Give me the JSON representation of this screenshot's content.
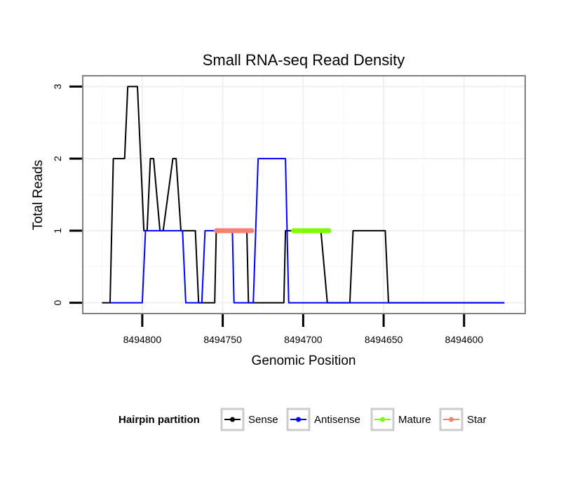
{
  "chart_data": {
    "type": "line",
    "title": "Small RNA-seq Read Density",
    "xlabel": "Genomic Position",
    "ylabel": "Total Reads",
    "x_reversed": true,
    "xlim": [
      8494837,
      8494562
    ],
    "ylim": [
      -0.15,
      3.15
    ],
    "x_ticks": [
      8494800,
      8494750,
      8494700,
      8494650,
      8494600
    ],
    "x_tick_labels": [
      "8494800",
      "8494750",
      "8494700",
      "8494650",
      "8494600"
    ],
    "y_ticks": [
      0,
      1,
      2,
      3
    ],
    "y_tick_labels": [
      "0",
      "1",
      "2",
      "3"
    ],
    "grid": true,
    "legend": {
      "title": "Hairpin partition",
      "position": "bottom",
      "items": [
        "Sense",
        "Antisense",
        "Mature",
        "Star"
      ]
    },
    "series": [
      {
        "name": "Sense",
        "color": "#000000",
        "x": [
          8494825,
          8494820,
          8494818,
          8494811,
          8494809,
          8494803,
          8494801,
          8494799,
          8494797,
          8494795,
          8494793,
          8494789,
          8494787,
          8494781,
          8494779,
          8494776,
          8494774,
          8494769,
          8494767,
          8494765,
          8494757,
          8494755,
          8494754,
          8494735,
          8494734,
          8494712,
          8494711,
          8494706,
          8494701,
          8494690,
          8494689,
          8494685,
          8494684,
          8494671,
          8494669,
          8494649,
          8494647,
          8494626,
          8494625,
          8494600,
          8494575
        ],
        "y": [
          0,
          0,
          2,
          2,
          3,
          3,
          2,
          1,
          1,
          2,
          2,
          1,
          1,
          2,
          2,
          1,
          1,
          1,
          1,
          0,
          0,
          0,
          1,
          1,
          0,
          0,
          1,
          1,
          1,
          1,
          1,
          0,
          0,
          0,
          1,
          1,
          0,
          0,
          0,
          0,
          0
        ]
      },
      {
        "name": "Antisense",
        "color": "#0000ff",
        "x": [
          8494820,
          8494800,
          8494798,
          8494775,
          8494773,
          8494763,
          8494761,
          8494744,
          8494743,
          8494731,
          8494728,
          8494711,
          8494709,
          8494690,
          8494689,
          8494684,
          8494682,
          8494648,
          8494575
        ],
        "y": [
          0,
          0,
          1,
          1,
          0,
          0,
          1,
          1,
          0,
          0,
          2,
          2,
          0,
          0,
          0,
          0,
          0,
          0,
          0
        ]
      },
      {
        "name": "Mature",
        "color": "#7cfc00",
        "x": [
          8494706,
          8494684
        ],
        "y": [
          1,
          1
        ]
      },
      {
        "name": "Star",
        "color": "#fa8072",
        "x": [
          8494754,
          8494732
        ],
        "y": [
          1,
          1
        ]
      }
    ]
  }
}
